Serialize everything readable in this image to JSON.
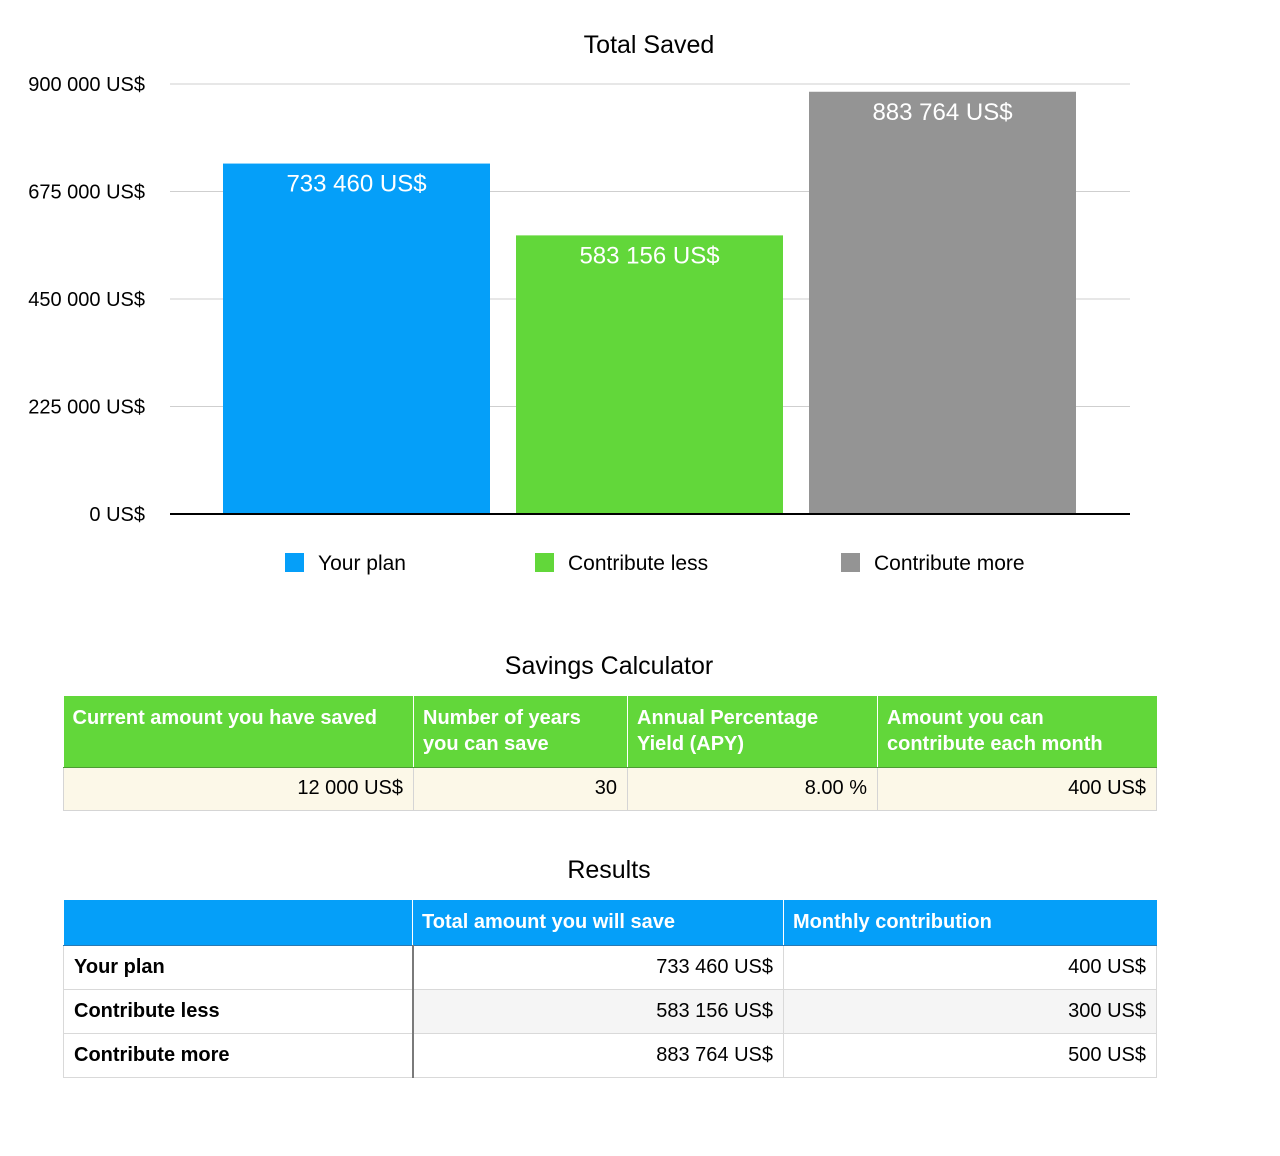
{
  "chart_data": {
    "type": "bar",
    "title": "Total Saved",
    "categories": [
      "Your plan",
      "Contribute less",
      "Contribute more"
    ],
    "values": [
      733460,
      583156,
      883764
    ],
    "value_labels": [
      "733 460 US$",
      "583 156 US$",
      "883 764 US$"
    ],
    "colors": [
      "#059ff9",
      "#62d73a",
      "#949494"
    ],
    "ylim": [
      0,
      900000
    ],
    "yticks": [
      0,
      225000,
      450000,
      675000,
      900000
    ],
    "ytick_labels": [
      "0 US$",
      "225 000 US$",
      "450 000 US$",
      "675 000 US$",
      "900 000 US$"
    ],
    "grid": true,
    "legend": "bottom",
    "xlabel": "",
    "ylabel": ""
  },
  "calculator": {
    "title": "Savings Calculator",
    "headers": [
      [
        "Current amount you have saved"
      ],
      [
        "Number of years",
        "you can save"
      ],
      [
        "Annual Percentage",
        "Yield (APY)"
      ],
      [
        "Amount you can",
        "contribute each month"
      ]
    ],
    "values": [
      "12 000 US$",
      "30",
      "8.00 %",
      "400 US$"
    ]
  },
  "results": {
    "title": "Results",
    "headers": [
      "",
      "Total amount you will save",
      "Monthly contribution"
    ],
    "rows": [
      {
        "label": "Your plan",
        "total": "733 460 US$",
        "monthly": "400 US$"
      },
      {
        "label": "Contribute less",
        "total": "583 156 US$",
        "monthly": "300 US$"
      },
      {
        "label": "Contribute more",
        "total": "883 764 US$",
        "monthly": "500 US$"
      }
    ]
  }
}
